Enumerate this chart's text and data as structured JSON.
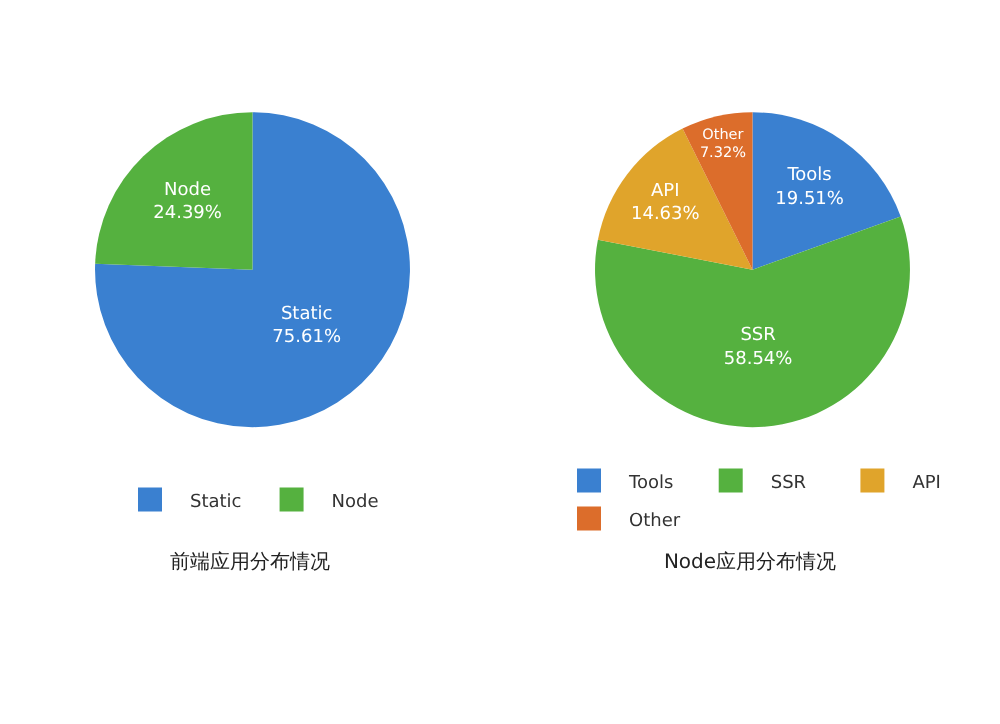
{
  "chart_data": [
    {
      "type": "pie",
      "title": "前端应用分布情况",
      "categories": [
        "Static",
        "Node"
      ],
      "values": [
        75.61,
        24.39
      ],
      "colors": [
        "#3a80d0",
        "#55b13f"
      ],
      "value_labels": [
        "75.61%",
        "24.39%"
      ],
      "legend": "bottom"
    },
    {
      "type": "pie",
      "title": "Node应用分布情况",
      "categories": [
        "Tools",
        "SSR",
        "API",
        "Other"
      ],
      "values": [
        19.51,
        58.54,
        14.63,
        7.32
      ],
      "colors": [
        "#3a80d0",
        "#55b13f",
        "#e0a42b",
        "#dc6d2b"
      ],
      "value_labels": [
        "19.51%",
        "58.54%",
        "14.63%",
        "7.32%"
      ],
      "legend": "bottom"
    }
  ]
}
